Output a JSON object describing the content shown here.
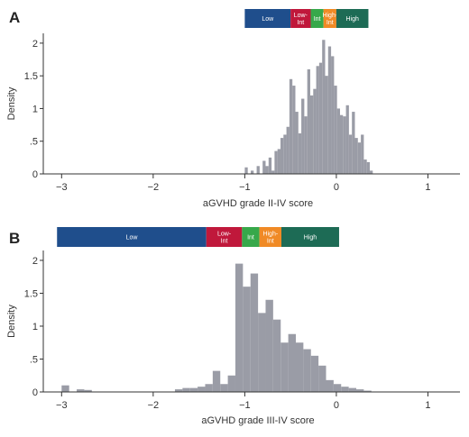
{
  "figure": {
    "colors": {
      "bar": "#9a9ca6",
      "axis": "#333333",
      "low": "#1f4e8c",
      "low_int": "#c0183b",
      "int": "#37a84a",
      "high_int": "#f08a25",
      "high": "#1d6b55"
    }
  },
  "chart_data": [
    {
      "type": "bar",
      "panel": "A",
      "xlabel": "aGVHD grade II-IV score",
      "ylabel": "Density",
      "xlim": [
        -3.2,
        1.35
      ],
      "ylim": [
        0,
        2.15
      ],
      "xticks": [
        -3,
        -2,
        -1,
        0,
        1
      ],
      "xtick_labels": [
        "−3",
        "−2",
        "−1",
        "0",
        "1"
      ],
      "yticks": [
        0,
        0.5,
        1,
        1.5,
        2
      ],
      "ytick_labels": [
        "0",
        ".5",
        "1",
        "1.5",
        "2"
      ],
      "grid": false,
      "bin_start": -1.0,
      "bin_width": 0.0325,
      "values": [
        0.1,
        0,
        0.05,
        0,
        0.12,
        0,
        0.2,
        0.12,
        0.25,
        0.05,
        0.35,
        0.38,
        0.55,
        0.6,
        0.72,
        1.45,
        1.35,
        0.95,
        0.62,
        1.15,
        0.88,
        1.6,
        1.2,
        1.3,
        1.65,
        1.7,
        2.05,
        1.5,
        1.95,
        1.8,
        1.35,
        1.0,
        0.9,
        0.88,
        1.05,
        0.6,
        0.95,
        0.55,
        0.48,
        0.6,
        0.22,
        0.18,
        0.05
      ],
      "risk_bands": [
        {
          "label": "Low",
          "from": -1.0,
          "to": -0.5,
          "color": "#1f4e8c"
        },
        {
          "label": "Low-\nInt",
          "from": -0.5,
          "to": -0.28,
          "color": "#c0183b"
        },
        {
          "label": "Int",
          "from": -0.28,
          "to": -0.14,
          "color": "#37a84a"
        },
        {
          "label": "High-\nInt",
          "from": -0.14,
          "to": 0.0,
          "color": "#f08a25"
        },
        {
          "label": "High",
          "from": 0.0,
          "to": 0.35,
          "color": "#1d6b55"
        }
      ]
    },
    {
      "type": "bar",
      "panel": "B",
      "xlabel": "aGVHD grade III-IV score",
      "ylabel": "Density",
      "xlim": [
        -3.2,
        1.35
      ],
      "ylim": [
        0,
        2.15
      ],
      "xticks": [
        -3,
        -2,
        -1,
        0,
        1
      ],
      "xtick_labels": [
        "−3",
        "−2",
        "−1",
        "0",
        "1"
      ],
      "yticks": [
        0,
        0.5,
        1,
        1.5,
        2
      ],
      "ytick_labels": [
        "0",
        ".5",
        "1",
        "1.5",
        "2"
      ],
      "grid": false,
      "bin_start": -3.0,
      "bin_width": 0.0825,
      "values": [
        0.1,
        0,
        0.04,
        0.03,
        0,
        0,
        0,
        0,
        0,
        0,
        0,
        0,
        0,
        0,
        0,
        0.04,
        0.06,
        0.06,
        0.08,
        0.12,
        0.32,
        0.12,
        0.25,
        1.95,
        1.6,
        1.8,
        1.2,
        1.4,
        1.1,
        0.75,
        0.88,
        0.75,
        0.65,
        0.55,
        0.4,
        0.18,
        0.12,
        0.08,
        0.06,
        0.04,
        0.02
      ],
      "risk_bands": [
        {
          "label": "Low",
          "from": -3.05,
          "to": -1.42,
          "color": "#1f4e8c"
        },
        {
          "label": "Low-\nInt",
          "from": -1.42,
          "to": -1.03,
          "color": "#c0183b"
        },
        {
          "label": "Int",
          "from": -1.03,
          "to": -0.84,
          "color": "#37a84a"
        },
        {
          "label": "High-\nInt",
          "from": -0.84,
          "to": -0.6,
          "color": "#f08a25"
        },
        {
          "label": "High",
          "from": -0.6,
          "to": 0.03,
          "color": "#1d6b55"
        }
      ]
    }
  ]
}
